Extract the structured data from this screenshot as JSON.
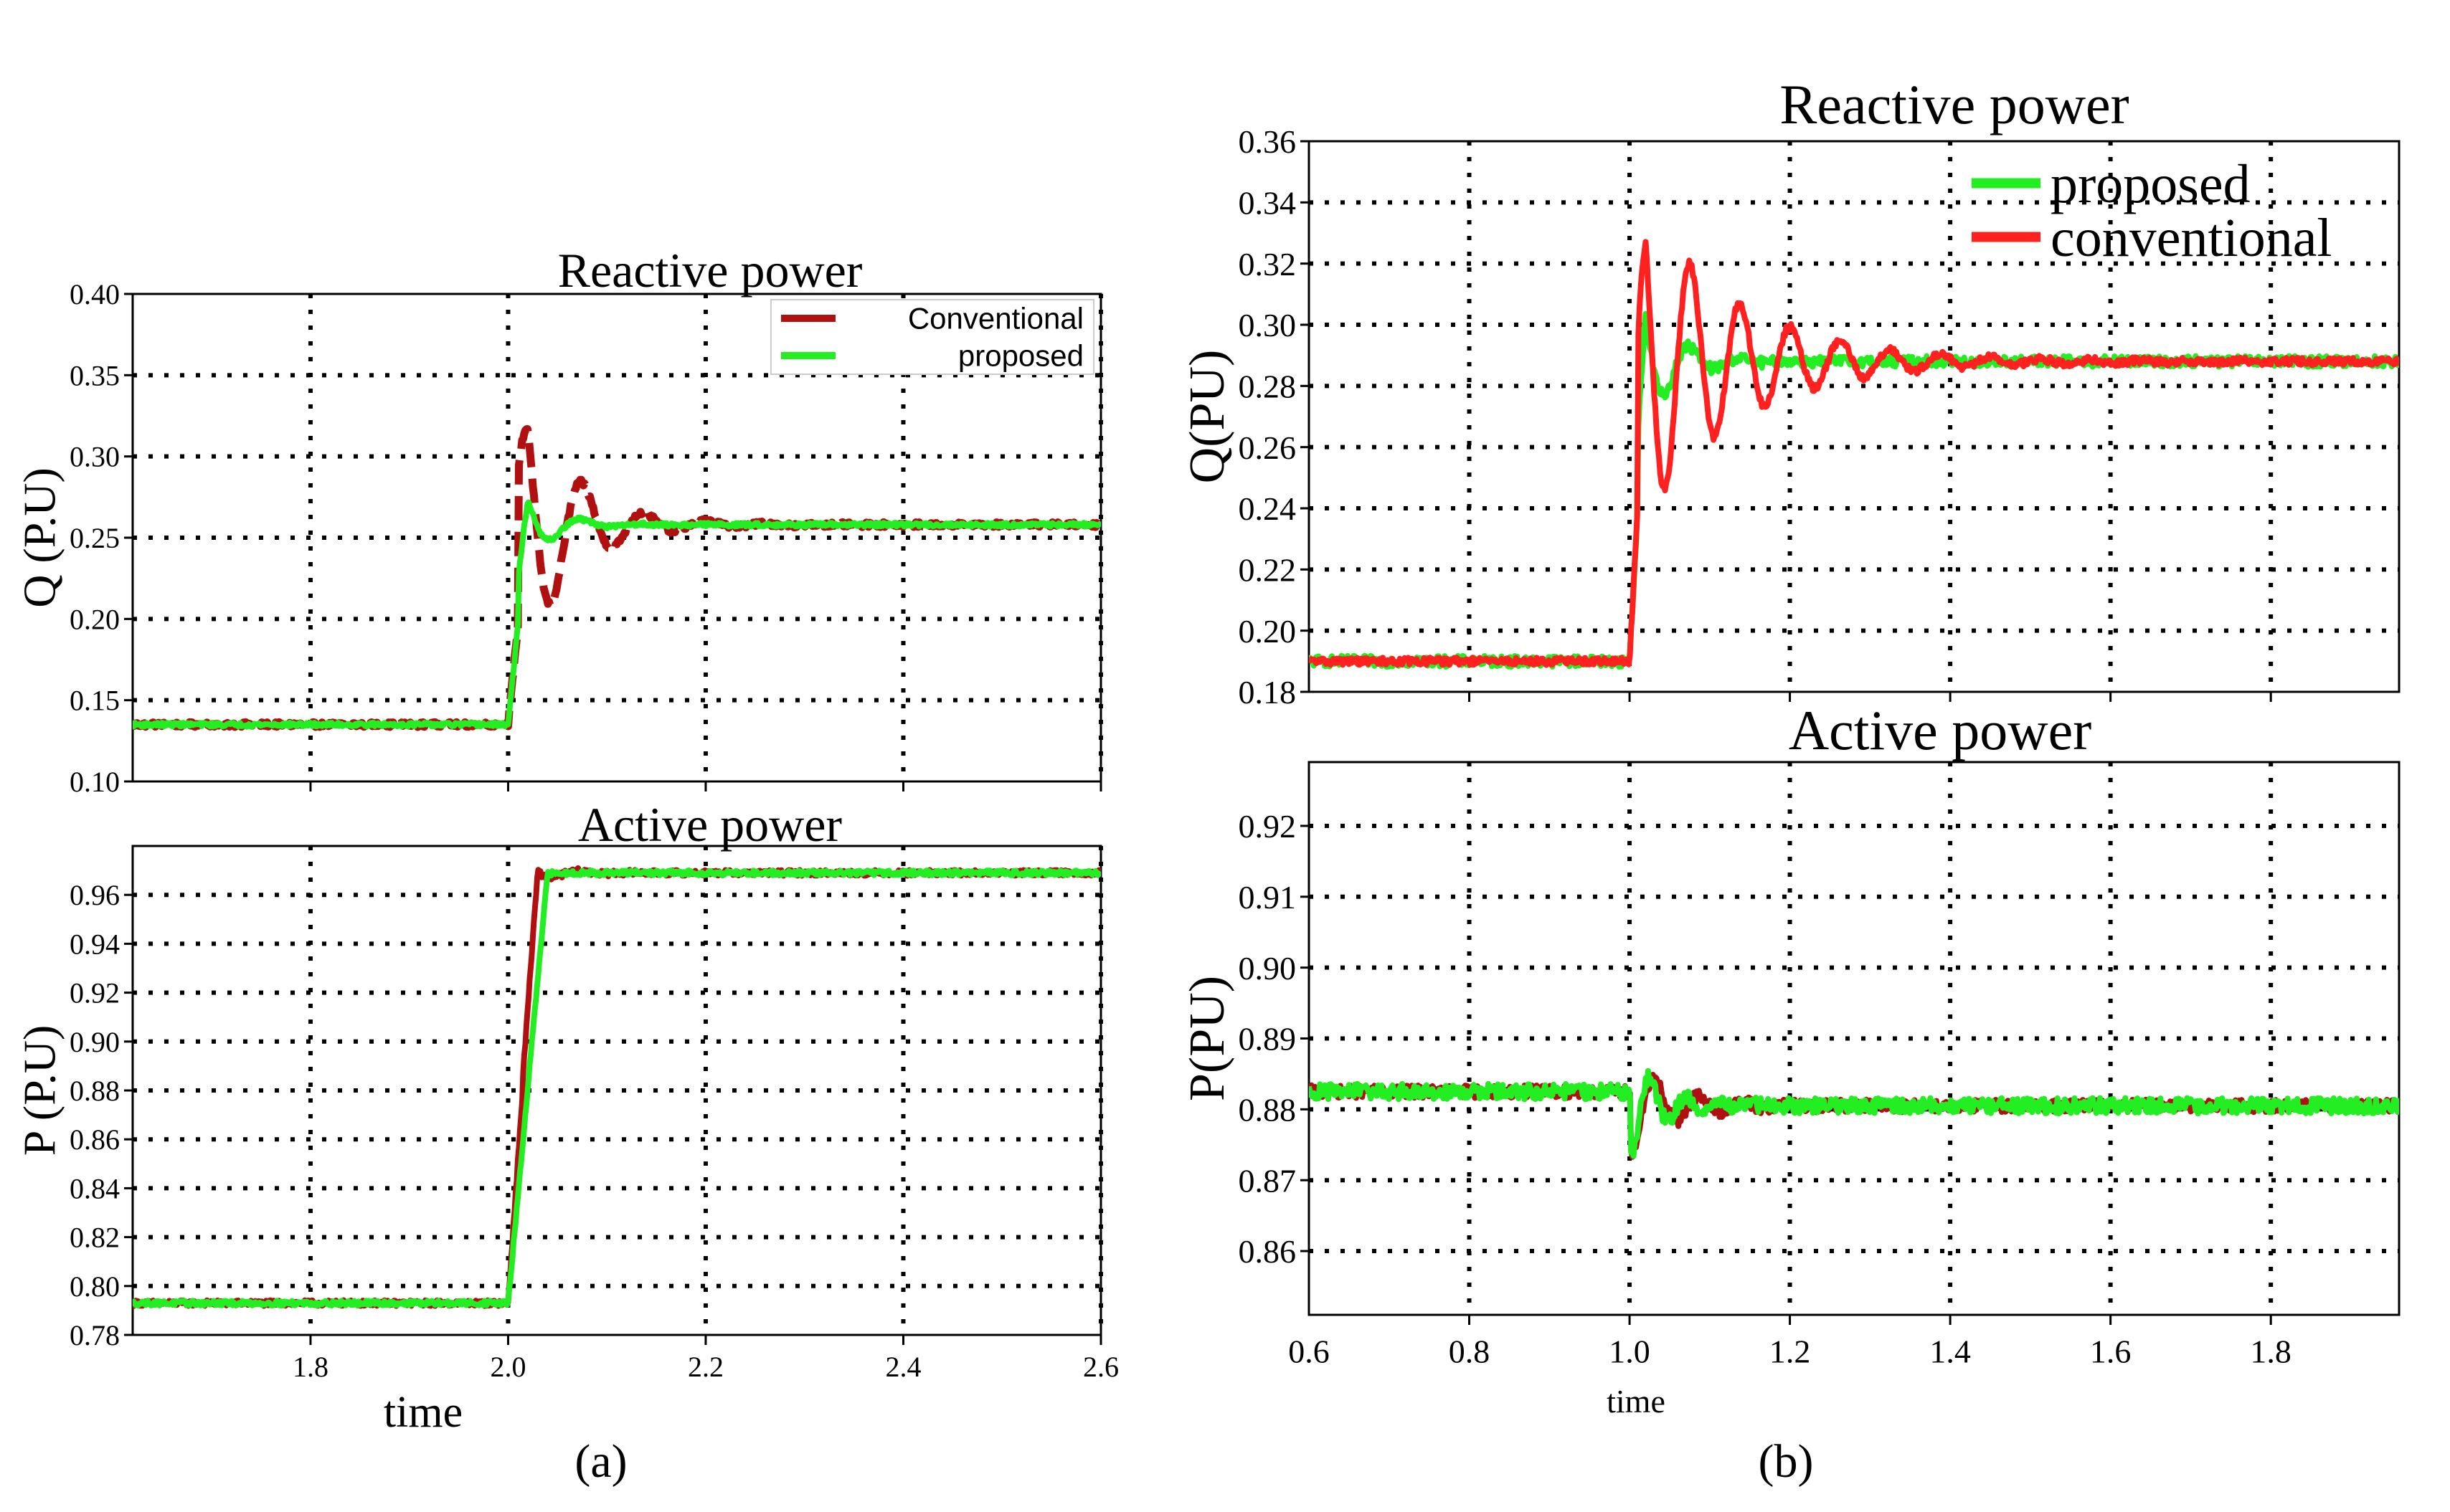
{
  "colors": {
    "conventional_a": "#b01010",
    "proposed": "#22ee22",
    "conventional_b": "#ff2020",
    "axis": "#000000",
    "grid": "#000000"
  },
  "panel_labels": {
    "a": "(a)",
    "b": "(b)"
  },
  "chart_data": [
    {
      "id": "a_reactive",
      "type": "line",
      "title": "Reactive power",
      "xlabel": "",
      "ylabel": "Q (P.U)",
      "xlim": [
        1.62,
        2.6
      ],
      "ylim": [
        0.1,
        0.4
      ],
      "xticks": [
        1.8,
        2.0,
        2.2,
        2.4,
        2.6
      ],
      "xtick_labels": [],
      "yticks": [
        0.1,
        0.15,
        0.2,
        0.25,
        0.3,
        0.35,
        0.4
      ],
      "ytick_labels": [
        "0.10",
        "0.15",
        "0.20",
        "0.25",
        "0.30",
        "0.35",
        "0.40"
      ],
      "grid": true,
      "legend": "top-right",
      "legend_labels": [
        "Conventional",
        "proposed"
      ],
      "series": [
        {
          "name": "Conventional",
          "style": "dashed",
          "color_key": "conventional_a",
          "initial": 0.135,
          "final": 0.258,
          "step_time": 2.0,
          "rise_time": 0.02,
          "overshoot": 0.095,
          "decay": 0.05,
          "freq": 16,
          "noise": 0.0015
        },
        {
          "name": "proposed",
          "style": "solid",
          "color_key": "proposed",
          "initial": 0.135,
          "final": 0.258,
          "step_time": 2.0,
          "rise_time": 0.02,
          "overshoot": 0.028,
          "decay": 0.03,
          "freq": 16,
          "noise": 0.0012
        }
      ]
    },
    {
      "id": "a_active",
      "type": "line",
      "title": "Active power",
      "xlabel": "time",
      "ylabel": "P (P.U)",
      "xlim": [
        1.62,
        2.6
      ],
      "ylim": [
        0.78,
        0.98
      ],
      "xticks": [
        1.8,
        2.0,
        2.2,
        2.4,
        2.6
      ],
      "xtick_labels": [
        "1.8",
        "2.0",
        "2.2",
        "2.4",
        "2.6"
      ],
      "yticks": [
        0.78,
        0.8,
        0.82,
        0.84,
        0.86,
        0.88,
        0.9,
        0.92,
        0.94,
        0.96
      ],
      "ytick_labels": [
        "0.78",
        "0.80",
        "0.82",
        "0.84",
        "0.86",
        "0.88",
        "0.90",
        "0.92",
        "0.94",
        "0.96"
      ],
      "grid": true,
      "legend": "none",
      "series": [
        {
          "name": "Conventional",
          "style": "solid",
          "color_key": "conventional_a",
          "initial": 0.793,
          "final": 0.969,
          "step_time": 2.0,
          "rise_time": 0.03,
          "overshoot": 0.005,
          "decay": 0.03,
          "freq": 18,
          "noise": 0.0012
        },
        {
          "name": "proposed",
          "style": "solid",
          "color_key": "proposed",
          "initial": 0.793,
          "final": 0.969,
          "step_time": 2.0,
          "rise_time": 0.04,
          "overshoot": 0.001,
          "decay": 0.02,
          "freq": 18,
          "noise": 0.001
        }
      ]
    },
    {
      "id": "b_reactive",
      "type": "line",
      "title": "Reactive power",
      "xlabel": "",
      "ylabel": "Q(PU)",
      "xlim": [
        0.6,
        1.96
      ],
      "ylim": [
        0.18,
        0.36
      ],
      "xticks": [
        0.8,
        1.0,
        1.2,
        1.4,
        1.6,
        1.8
      ],
      "xtick_labels": [],
      "yticks": [
        0.18,
        0.2,
        0.22,
        0.24,
        0.26,
        0.28,
        0.3,
        0.32,
        0.34,
        0.36
      ],
      "ytick_labels": [
        "0.18",
        "0.20",
        "0.22",
        "0.24",
        "0.26",
        "0.28",
        "0.30",
        "0.32",
        "0.34",
        "0.36"
      ],
      "grid": true,
      "legend": "top-right",
      "legend_labels": [
        "proposed",
        "conventional"
      ],
      "series": [
        {
          "name": "proposed",
          "style": "solid",
          "color_key": "proposed",
          "initial": 0.19,
          "final": 0.288,
          "step_time": 1.0,
          "rise_time": 0.02,
          "overshoot": 0.025,
          "decay": 0.04,
          "freq": 16,
          "noise": 0.0018
        },
        {
          "name": "conventional",
          "style": "solid",
          "color_key": "conventional_b",
          "initial": 0.19,
          "final": 0.288,
          "step_time": 1.0,
          "rise_time": 0.02,
          "overshoot": 0.055,
          "decay": 0.12,
          "freq": 16,
          "noise": 0.0012
        }
      ]
    },
    {
      "id": "b_active",
      "type": "line",
      "title": "Active power",
      "xlabel": "time",
      "ylabel": "P(PU)",
      "xlim": [
        0.6,
        1.96
      ],
      "ylim": [
        0.851,
        0.929
      ],
      "xticks": [
        0.8,
        1.0,
        1.2,
        1.4,
        1.6,
        1.8
      ],
      "xtick_labels": [
        "0.6",
        "0.8",
        "1.0",
        "1.2",
        "1.4",
        "1.6",
        "1.8"
      ],
      "xtick_label_values": [
        0.6,
        0.8,
        1.0,
        1.2,
        1.4,
        1.6,
        1.8
      ],
      "yticks": [
        0.86,
        0.87,
        0.88,
        0.89,
        0.9,
        0.91,
        0.92
      ],
      "ytick_labels": [
        "0.86",
        "0.87",
        "0.88",
        "0.89",
        "0.90",
        "0.91",
        "0.92"
      ],
      "grid": true,
      "legend": "none",
      "series": [
        {
          "name": "conventional",
          "style": "solid",
          "color_key": "conventional_a",
          "initial": 0.8825,
          "final": 0.8805,
          "step_time": 1.0,
          "rise_time": 0.002,
          "overshoot": -0.007,
          "decay": 0.05,
          "freq": 18,
          "noise": 0.0009
        },
        {
          "name": "proposed",
          "style": "solid",
          "color_key": "proposed",
          "initial": 0.8825,
          "final": 0.8805,
          "step_time": 1.0,
          "rise_time": 0.002,
          "overshoot": -0.008,
          "decay": 0.035,
          "freq": 22,
          "noise": 0.0011
        }
      ]
    }
  ]
}
